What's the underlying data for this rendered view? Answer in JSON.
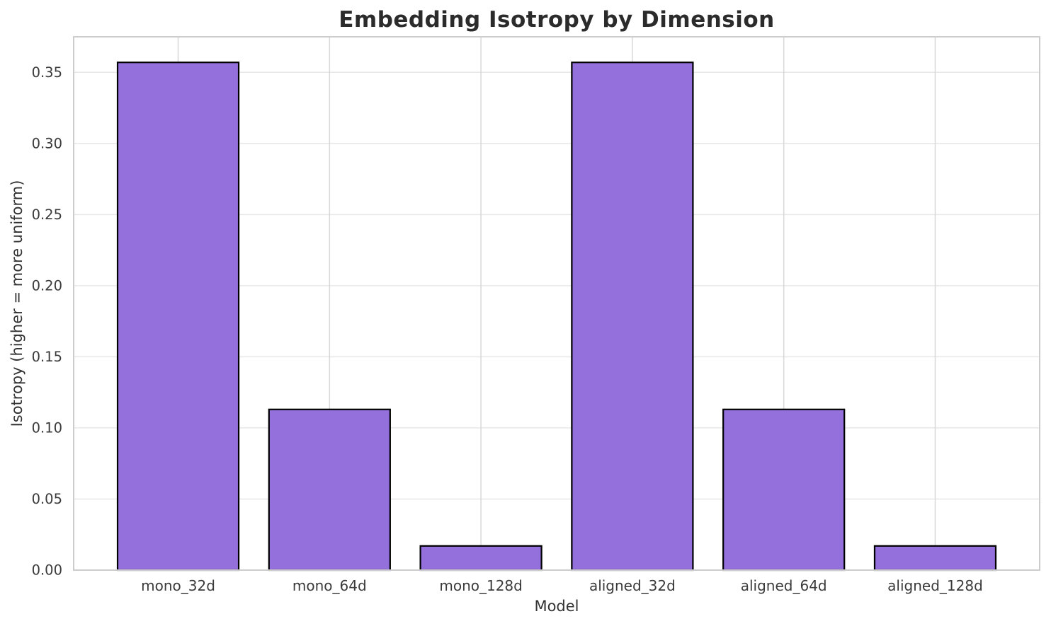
{
  "figure": {
    "background": "#ffffff"
  },
  "chart_data": {
    "type": "bar",
    "title": "Embedding Isotropy by Dimension",
    "xlabel": "Model",
    "ylabel": "Isotropy (higher = more uniform)",
    "categories": [
      "mono_32d",
      "mono_64d",
      "mono_128d",
      "aligned_32d",
      "aligned_64d",
      "aligned_128d"
    ],
    "values": [
      0.357,
      0.113,
      0.017,
      0.357,
      0.113,
      0.017
    ],
    "yticks": [
      0,
      0.05,
      0.1,
      0.15,
      0.2,
      0.25,
      0.3,
      0.35
    ],
    "ytick_labels": [
      "0.00",
      "0.05",
      "0.10",
      "0.15",
      "0.20",
      "0.25",
      "0.30",
      "0.35"
    ],
    "ylim": [
      0,
      0.375
    ],
    "xlim": [
      -0.69,
      5.69
    ],
    "bar_width": 0.8,
    "grid": "both",
    "legend": "none",
    "colors": {
      "bar_fill": "#9370DB",
      "bar_edge": "#000000",
      "grid_horizontal": "#e7e7e7",
      "grid_vertical": "#d8d8d8",
      "spine": "#cccccc",
      "title_text": "#2b2b2b",
      "tick_text": "#3a3a3a"
    }
  }
}
